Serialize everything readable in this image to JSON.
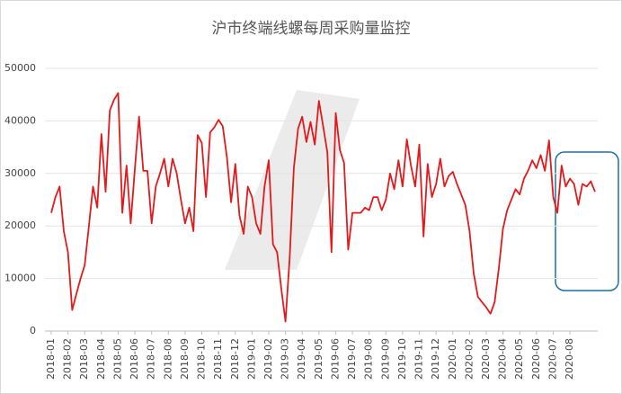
{
  "chart_data": {
    "type": "line",
    "title": "沪市终端线螺每周采购量监控",
    "categories": [
      "2018-01",
      null,
      null,
      null,
      "2018-02",
      null,
      null,
      null,
      "2018-03",
      null,
      null,
      null,
      "2018-04",
      null,
      null,
      null,
      "2018-05",
      null,
      null,
      null,
      "2018-06",
      null,
      null,
      null,
      "2018-07",
      null,
      null,
      null,
      "2018-08",
      null,
      null,
      null,
      "2018-09",
      null,
      null,
      null,
      "2018-10",
      null,
      null,
      null,
      "2018-11",
      null,
      null,
      null,
      "2018-12",
      null,
      null,
      null,
      "2019-01",
      null,
      null,
      null,
      "2019-02",
      null,
      null,
      null,
      "2019-03",
      null,
      null,
      null,
      "2019-04",
      null,
      null,
      null,
      "2019-05",
      null,
      null,
      null,
      "2019-06",
      null,
      null,
      null,
      "2019-07",
      null,
      null,
      null,
      "2019-08",
      null,
      null,
      null,
      "2019-09",
      null,
      null,
      null,
      "2019-10",
      null,
      null,
      null,
      "2019-11",
      null,
      null,
      null,
      "2019-12",
      null,
      null,
      null,
      "2020-01",
      null,
      null,
      null,
      "2020-02",
      null,
      null,
      null,
      "2020-03",
      null,
      null,
      null,
      "2020-04",
      null,
      null,
      null,
      "2020-05",
      null,
      null,
      null,
      "2020-06",
      null,
      null,
      null,
      "2020-07",
      null,
      null,
      null,
      "2020-08",
      null,
      null,
      null,
      null,
      null,
      null
    ],
    "values": [
      22500,
      25500,
      27500,
      19000,
      15000,
      4000,
      7000,
      10000,
      12500,
      20000,
      27500,
      23500,
      37500,
      26500,
      42000,
      44000,
      45300,
      22500,
      31500,
      20500,
      31000,
      40800,
      30500,
      30500,
      20500,
      27500,
      30000,
      32800,
      27500,
      32800,
      30000,
      25000,
      20500,
      23500,
      19000,
      37300,
      35800,
      25500,
      37800,
      38800,
      40200,
      39000,
      33000,
      24500,
      31800,
      22000,
      18500,
      27500,
      25500,
      20500,
      18500,
      27500,
      32500,
      16500,
      15000,
      8000,
      1800,
      14000,
      31000,
      38500,
      40800,
      36000,
      39800,
      35500,
      43800,
      39000,
      34000,
      15000,
      41500,
      34500,
      32000,
      15500,
      22500,
      22500,
      22500,
      23500,
      23000,
      25500,
      25500,
      23000,
      25000,
      30000,
      27000,
      32500,
      27500,
      36500,
      31500,
      27500,
      35500,
      18000,
      31800,
      25500,
      28000,
      32800,
      27500,
      29500,
      30300,
      28000,
      26000,
      24000,
      19000,
      11000,
      6500,
      5500,
      4500,
      3300,
      5500,
      12000,
      19500,
      23000,
      25000,
      27000,
      26000,
      29000,
      30500,
      32500,
      31000,
      33500,
      30500,
      36300,
      25500,
      22500,
      31500,
      27500,
      29000,
      28000,
      24000,
      28000,
      27500,
      28500,
      26500
    ],
    "color": "#e31a1c",
    "ylim": [
      0,
      50000
    ],
    "yticks": [
      0,
      10000,
      20000,
      30000,
      40000,
      50000
    ],
    "grid": true
  }
}
